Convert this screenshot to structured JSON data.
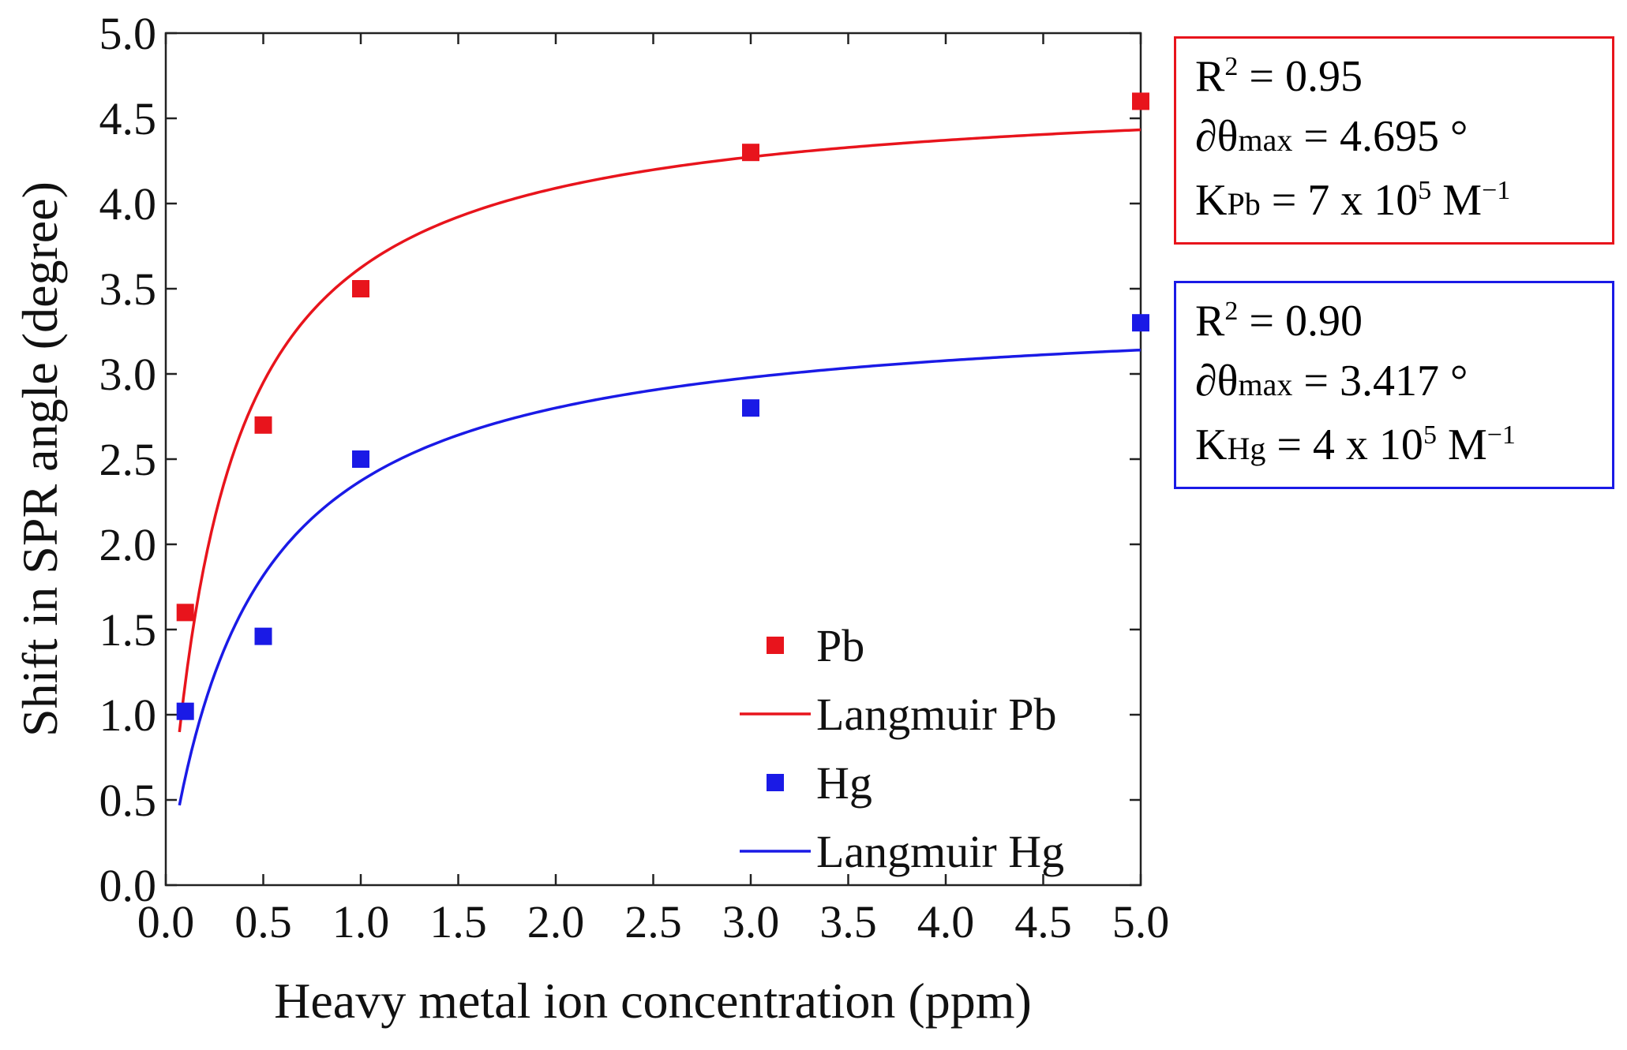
{
  "chart_data": {
    "type": "scatter",
    "xlabel": "Heavy metal ion concentration (ppm)",
    "ylabel": "Shift in SPR angle (degree)",
    "xlim": [
      0.0,
      5.0
    ],
    "ylim": [
      0.0,
      5.0
    ],
    "xticks": [
      "0.0",
      "0.5",
      "1.0",
      "1.5",
      "2.0",
      "2.5",
      "3.0",
      "3.5",
      "4.0",
      "4.5",
      "5.0"
    ],
    "yticks": [
      "0.0",
      "0.5",
      "1.0",
      "1.5",
      "2.0",
      "2.5",
      "3.0",
      "3.5",
      "4.0",
      "4.5",
      "5.0"
    ],
    "legend_position": "bottom-right",
    "series": [
      {
        "name": "Pb",
        "kind": "points",
        "color": "#e8141c",
        "x": [
          0.1,
          0.5,
          1.0,
          3.0,
          5.0
        ],
        "y": [
          1.6,
          2.7,
          3.5,
          4.3,
          4.6
        ]
      },
      {
        "name": "Langmuir Pb",
        "kind": "fit",
        "color": "#e8141c",
        "model": "langmuir",
        "theta_max": 4.695,
        "k_ppm": 3.38,
        "x_range": [
          0.07,
          5.0
        ]
      },
      {
        "name": "Hg",
        "kind": "points",
        "color": "#1a1ae6",
        "x": [
          0.1,
          0.5,
          1.0,
          3.0,
          5.0
        ],
        "y": [
          1.02,
          1.46,
          2.5,
          2.8,
          3.3
        ]
      },
      {
        "name": "Langmuir Hg",
        "kind": "fit",
        "color": "#1a1ae6",
        "model": "langmuir",
        "theta_max": 3.417,
        "k_ppm": 2.27,
        "x_range": [
          0.07,
          5.0
        ]
      }
    ]
  },
  "annotations": {
    "pb": {
      "r2_label": "R",
      "r2_exp": "2",
      "r2_value": "= 0.95",
      "theta_symbol": "∂θ",
      "theta_sub": "max",
      "theta_value": "= 4.695 °",
      "k_symbol": "K",
      "k_sub": "Pb",
      "k_value": "= 7 x 10",
      "k_exp": "5",
      "k_unit": "M",
      "k_unit_exp": "−1"
    },
    "hg": {
      "r2_label": "R",
      "r2_exp": "2",
      "r2_value": "= 0.90",
      "theta_symbol": "∂θ",
      "theta_sub": "max",
      "theta_value": "= 3.417 °",
      "k_symbol": "K",
      "k_sub": "Hg",
      "k_value": "= 4 x 10",
      "k_exp": "5",
      "k_unit": "M",
      "k_unit_exp": "−1"
    }
  }
}
